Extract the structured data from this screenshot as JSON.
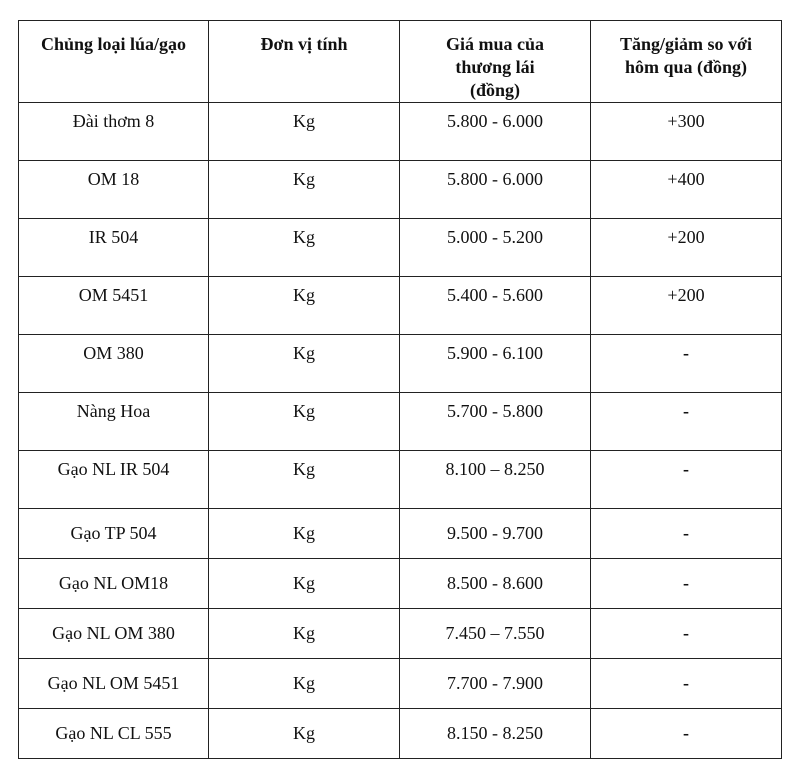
{
  "table": {
    "headers": [
      "Chủng loại lúa/gạo",
      "Đơn vị tính",
      "Giá mua của thương lái (đồng)",
      "Tăng/giảm so với hôm qua (đồng)"
    ],
    "rows": [
      [
        "Đài thơm 8",
        "Kg",
        "5.800 - 6.000",
        "+300"
      ],
      [
        "OM 18",
        "Kg",
        "5.800 - 6.000",
        "+400"
      ],
      [
        "IR 504",
        "Kg",
        "5.000 - 5.200",
        "+200"
      ],
      [
        "OM 5451",
        "Kg",
        "5.400 - 5.600",
        "+200"
      ],
      [
        "OM 380",
        "Kg",
        "5.900 - 6.100",
        "-"
      ],
      [
        "Nàng Hoa",
        "Kg",
        "5.700 - 5.800",
        "-"
      ],
      [
        "Gạo NL IR 504",
        "Kg",
        "8.100 – 8.250",
        "-"
      ],
      [
        "Gạo TP 504",
        "Kg",
        "9.500 - 9.700",
        "-"
      ],
      [
        "Gạo NL OM18",
        "Kg",
        "8.500 - 8.600",
        "-"
      ],
      [
        "Gạo NL OM 380",
        "Kg",
        "7.450 – 7.550",
        "-"
      ],
      [
        "Gạo NL OM 5451",
        "Kg",
        "7.700 - 7.900",
        "-"
      ],
      [
        "Gạo NL CL 555",
        "Kg",
        "8.150 - 8.250",
        "-"
      ]
    ]
  }
}
